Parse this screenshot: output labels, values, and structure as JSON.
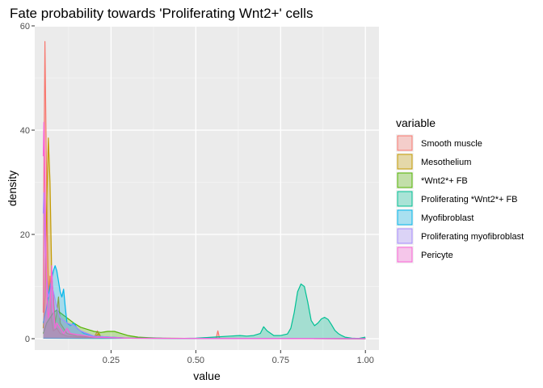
{
  "chart_data": {
    "type": "area",
    "title": "Fate probability towards 'Proliferating Wnt2+' cells",
    "xlabel": "value",
    "ylabel": "density",
    "xlim": [
      0.0,
      1.0
    ],
    "ylim": [
      -0.5,
      60
    ],
    "x_ticks": [
      0.25,
      0.5,
      0.75,
      1.0
    ],
    "x_tick_labels": [
      "0.25",
      "0.50",
      "0.75",
      "1.00"
    ],
    "y_ticks": [
      0,
      20,
      40,
      60
    ],
    "y_tick_labels": [
      "0",
      "20",
      "40",
      "60"
    ],
    "grid": true,
    "legend": {
      "title": "variable",
      "position": "right"
    },
    "series": [
      {
        "name": "Smooth muscle",
        "color": "#F8766D",
        "points": [
          [
            0.05,
            5
          ],
          [
            0.052,
            30
          ],
          [
            0.055,
            57
          ],
          [
            0.058,
            40
          ],
          [
            0.062,
            20
          ],
          [
            0.066,
            8
          ],
          [
            0.07,
            12
          ],
          [
            0.074,
            4
          ],
          [
            0.08,
            1.5
          ],
          [
            0.09,
            2
          ],
          [
            0.1,
            1
          ],
          [
            0.12,
            0.5
          ],
          [
            0.15,
            0.3
          ],
          [
            0.2,
            0.2
          ],
          [
            0.21,
            1.5
          ],
          [
            0.215,
            0.3
          ],
          [
            0.3,
            0.1
          ],
          [
            0.5,
            0.05
          ],
          [
            0.56,
            0.1
          ],
          [
            0.565,
            1.5
          ],
          [
            0.57,
            0.1
          ],
          [
            0.7,
            0.05
          ],
          [
            0.9,
            0.02
          ],
          [
            1.0,
            0
          ]
        ]
      },
      {
        "name": "Mesothelium",
        "color": "#C49A00",
        "points": [
          [
            0.05,
            2
          ],
          [
            0.055,
            8
          ],
          [
            0.06,
            25
          ],
          [
            0.065,
            38.5
          ],
          [
            0.07,
            30
          ],
          [
            0.075,
            12
          ],
          [
            0.08,
            8
          ],
          [
            0.085,
            3
          ],
          [
            0.09,
            5
          ],
          [
            0.095,
            8
          ],
          [
            0.1,
            3
          ],
          [
            0.11,
            2
          ],
          [
            0.12,
            1
          ],
          [
            0.15,
            0.5
          ],
          [
            0.2,
            0.3
          ],
          [
            0.215,
            1
          ],
          [
            0.22,
            0.3
          ],
          [
            0.3,
            0.1
          ],
          [
            0.5,
            0.05
          ],
          [
            0.7,
            0.02
          ],
          [
            1.0,
            0
          ]
        ]
      },
      {
        "name": "*Wnt2*+ FB",
        "color": "#53B400",
        "points": [
          [
            0.05,
            1
          ],
          [
            0.06,
            3
          ],
          [
            0.07,
            4
          ],
          [
            0.08,
            5
          ],
          [
            0.09,
            5.5
          ],
          [
            0.1,
            5
          ],
          [
            0.12,
            4
          ],
          [
            0.14,
            3
          ],
          [
            0.16,
            2.2
          ],
          [
            0.18,
            1.8
          ],
          [
            0.2,
            1.4
          ],
          [
            0.22,
            1.2
          ],
          [
            0.24,
            1.4
          ],
          [
            0.26,
            1.4
          ],
          [
            0.28,
            1
          ],
          [
            0.3,
            0.6
          ],
          [
            0.33,
            0.3
          ],
          [
            0.36,
            0.2
          ],
          [
            0.4,
            0.1
          ],
          [
            0.5,
            0.05
          ],
          [
            0.6,
            0.05
          ],
          [
            0.8,
            0.02
          ],
          [
            1.0,
            0
          ]
        ]
      },
      {
        "name": "Proliferating *Wnt2*+ FB",
        "color": "#00C094",
        "points": [
          [
            0.05,
            0.1
          ],
          [
            0.2,
            0.05
          ],
          [
            0.35,
            0.1
          ],
          [
            0.45,
            0.05
          ],
          [
            0.5,
            0.1
          ],
          [
            0.55,
            0.3
          ],
          [
            0.6,
            0.5
          ],
          [
            0.63,
            0.6
          ],
          [
            0.65,
            0.5
          ],
          [
            0.67,
            0.6
          ],
          [
            0.69,
            1
          ],
          [
            0.7,
            2.3
          ],
          [
            0.71,
            1.5
          ],
          [
            0.73,
            0.6
          ],
          [
            0.75,
            0.6
          ],
          [
            0.77,
            0.9
          ],
          [
            0.78,
            2
          ],
          [
            0.79,
            5
          ],
          [
            0.8,
            9
          ],
          [
            0.81,
            10.5
          ],
          [
            0.82,
            10
          ],
          [
            0.83,
            7
          ],
          [
            0.84,
            3.5
          ],
          [
            0.85,
            2.5
          ],
          [
            0.86,
            3
          ],
          [
            0.87,
            3.8
          ],
          [
            0.88,
            4.1
          ],
          [
            0.89,
            3.7
          ],
          [
            0.9,
            2.7
          ],
          [
            0.91,
            1.6
          ],
          [
            0.92,
            1
          ],
          [
            0.93,
            0.6
          ],
          [
            0.94,
            0.3
          ],
          [
            0.96,
            0.1
          ],
          [
            0.98,
            0.05
          ],
          [
            1.0,
            0.3
          ]
        ]
      },
      {
        "name": "Myofibroblast",
        "color": "#00B6EB",
        "points": [
          [
            0.05,
            3
          ],
          [
            0.06,
            6
          ],
          [
            0.07,
            10
          ],
          [
            0.08,
            13
          ],
          [
            0.085,
            14
          ],
          [
            0.09,
            13
          ],
          [
            0.1,
            9
          ],
          [
            0.105,
            8
          ],
          [
            0.11,
            9.5
          ],
          [
            0.115,
            6
          ],
          [
            0.12,
            3
          ],
          [
            0.13,
            2.5
          ],
          [
            0.14,
            3
          ],
          [
            0.15,
            2
          ],
          [
            0.17,
            1
          ],
          [
            0.2,
            0.5
          ],
          [
            0.25,
            0.3
          ],
          [
            0.3,
            0.1
          ],
          [
            0.5,
            0.05
          ],
          [
            1.0,
            0
          ]
        ]
      },
      {
        "name": "Proliferating myofibroblast",
        "color": "#A58AFF",
        "points": [
          [
            0.05,
            24
          ],
          [
            0.052,
            28
          ],
          [
            0.055,
            20
          ],
          [
            0.06,
            12
          ],
          [
            0.065,
            8
          ],
          [
            0.07,
            9
          ],
          [
            0.075,
            10
          ],
          [
            0.08,
            9
          ],
          [
            0.09,
            6
          ],
          [
            0.1,
            4
          ],
          [
            0.12,
            3
          ],
          [
            0.14,
            2.6
          ],
          [
            0.16,
            1.5
          ],
          [
            0.18,
            1
          ],
          [
            0.2,
            0.5
          ],
          [
            0.25,
            0.3
          ],
          [
            0.3,
            0.1
          ],
          [
            0.5,
            0.05
          ],
          [
            1.0,
            0
          ]
        ]
      },
      {
        "name": "Pericyte",
        "color": "#FB61D7",
        "points": [
          [
            0.05,
            35
          ],
          [
            0.052,
            41.5
          ],
          [
            0.055,
            30
          ],
          [
            0.06,
            10
          ],
          [
            0.065,
            4
          ],
          [
            0.07,
            6
          ],
          [
            0.075,
            14
          ],
          [
            0.08,
            6
          ],
          [
            0.085,
            2
          ],
          [
            0.09,
            3
          ],
          [
            0.1,
            2
          ],
          [
            0.11,
            1
          ],
          [
            0.12,
            2
          ],
          [
            0.13,
            1
          ],
          [
            0.15,
            0.8
          ],
          [
            0.18,
            0.5
          ],
          [
            0.2,
            0.3
          ],
          [
            0.25,
            0.2
          ],
          [
            0.3,
            0.1
          ],
          [
            0.5,
            0.05
          ],
          [
            1.0,
            0
          ]
        ]
      }
    ]
  }
}
